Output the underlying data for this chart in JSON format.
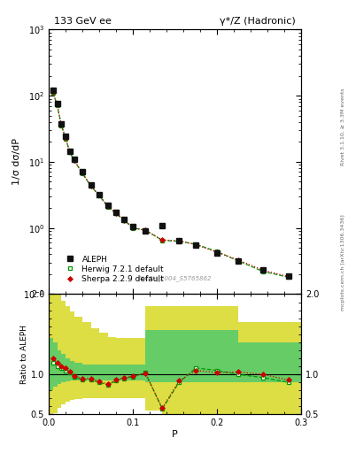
{
  "title_left": "133 GeV ee",
  "title_right": "γ*/Z (Hadronic)",
  "ylabel_main": "1/σ dσ/dP",
  "ylabel_ratio": "Ratio to ALEPH",
  "xlabel": "P",
  "right_label_top": "Rivet 3.1.10, ≥ 3.3M events",
  "right_label_bot": "mcplots.cern.ch [arXiv:1306.3436]",
  "ref_label": "ALEPH_2004_S5765862",
  "data_x": [
    0.005,
    0.01,
    0.015,
    0.02,
    0.025,
    0.03,
    0.04,
    0.05,
    0.06,
    0.07,
    0.08,
    0.09,
    0.1,
    0.115,
    0.135,
    0.155,
    0.175,
    0.2,
    0.225,
    0.255,
    0.285
  ],
  "data_y": [
    120.0,
    75.0,
    38.0,
    24.0,
    14.5,
    11.0,
    7.0,
    4.5,
    3.2,
    2.2,
    1.7,
    1.35,
    1.05,
    0.9,
    1.1,
    0.65,
    0.55,
    0.42,
    0.32,
    0.23,
    0.19
  ],
  "herwig_x": [
    0.005,
    0.01,
    0.015,
    0.02,
    0.025,
    0.03,
    0.04,
    0.05,
    0.06,
    0.07,
    0.08,
    0.09,
    0.1,
    0.115,
    0.135,
    0.155,
    0.175,
    0.2,
    0.225,
    0.255,
    0.285
  ],
  "herwig_y": [
    110.0,
    72.0,
    35.5,
    22.5,
    14.0,
    10.5,
    6.7,
    4.3,
    3.1,
    2.1,
    1.65,
    1.3,
    1.0,
    0.93,
    0.65,
    0.63,
    0.57,
    0.44,
    0.32,
    0.22,
    0.18
  ],
  "sherpa_x": [
    0.005,
    0.01,
    0.015,
    0.02,
    0.025,
    0.03,
    0.04,
    0.05,
    0.06,
    0.07,
    0.08,
    0.09,
    0.1,
    0.115,
    0.135,
    0.155,
    0.175,
    0.2,
    0.225,
    0.255,
    0.285
  ],
  "sherpa_y": [
    113.0,
    73.0,
    36.0,
    23.0,
    14.2,
    10.7,
    6.8,
    4.35,
    3.15,
    2.15,
    1.67,
    1.32,
    1.01,
    0.92,
    0.66,
    0.64,
    0.56,
    0.43,
    0.33,
    0.23,
    0.185
  ],
  "ratio_herwig": [
    1.15,
    1.1,
    1.08,
    1.05,
    1.02,
    0.97,
    0.93,
    0.93,
    0.9,
    0.87,
    0.92,
    0.95,
    0.97,
    1.02,
    0.57,
    0.9,
    1.08,
    1.05,
    1.0,
    0.96,
    0.9
  ],
  "ratio_sherpa": [
    1.2,
    1.15,
    1.1,
    1.08,
    1.03,
    0.98,
    0.95,
    0.95,
    0.91,
    0.88,
    0.93,
    0.96,
    0.98,
    1.01,
    0.58,
    0.92,
    1.05,
    1.02,
    1.03,
    1.0,
    0.93
  ],
  "band_edges": [
    0.0,
    0.005,
    0.01,
    0.015,
    0.02,
    0.025,
    0.03,
    0.04,
    0.05,
    0.06,
    0.07,
    0.08,
    0.09,
    0.1,
    0.115,
    0.135,
    0.155,
    0.175,
    0.2,
    0.225,
    0.255,
    0.285,
    0.3
  ],
  "green_lo": [
    0.8,
    0.85,
    0.88,
    0.9,
    0.91,
    0.92,
    0.92,
    0.92,
    0.92,
    0.92,
    0.92,
    0.92,
    0.92,
    0.92,
    0.9,
    0.9,
    0.9,
    0.9,
    0.9,
    0.9,
    0.9,
    0.9,
    0.9
  ],
  "green_hi": [
    1.45,
    1.4,
    1.3,
    1.25,
    1.2,
    1.17,
    1.14,
    1.12,
    1.12,
    1.12,
    1.12,
    1.12,
    1.12,
    1.12,
    1.55,
    1.55,
    1.55,
    1.55,
    1.55,
    1.4,
    1.4,
    1.4,
    1.4
  ],
  "yellow_lo": [
    0.5,
    0.52,
    0.58,
    0.63,
    0.66,
    0.68,
    0.69,
    0.7,
    0.7,
    0.7,
    0.7,
    0.7,
    0.7,
    0.7,
    0.55,
    0.45,
    0.45,
    0.45,
    0.45,
    0.45,
    0.45,
    0.45,
    0.45
  ],
  "yellow_hi": [
    2.0,
    2.0,
    2.0,
    1.92,
    1.85,
    1.78,
    1.72,
    1.65,
    1.57,
    1.52,
    1.47,
    1.45,
    1.45,
    1.45,
    1.85,
    1.85,
    1.85,
    1.85,
    1.85,
    1.65,
    1.65,
    1.65,
    1.65
  ],
  "ylim_main": [
    0.1,
    1000
  ],
  "ylim_ratio": [
    0.5,
    2.0
  ],
  "xlim": [
    0.0,
    0.3
  ],
  "color_data": "#111111",
  "color_herwig": "#009900",
  "color_sherpa": "#cc0000",
  "color_green_band": "#66cc66",
  "color_yellow_band": "#dddd44",
  "legend_entries": [
    "ALEPH",
    "Herwig 7.2.1 default",
    "Sherpa 2.2.9 default"
  ]
}
